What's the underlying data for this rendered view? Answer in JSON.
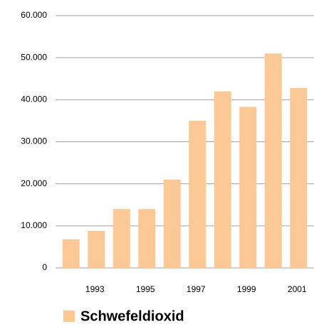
{
  "chart_data": {
    "type": "bar",
    "categories": [
      null,
      "1993",
      null,
      "1995",
      null,
      "1997",
      null,
      "1999",
      null,
      "2001"
    ],
    "series": [
      {
        "name": "Schwefeldioxid",
        "color": "#fcc996",
        "values": [
          6800,
          8800,
          14000,
          14000,
          21000,
          35000,
          42000,
          38300,
          51000,
          42800
        ]
      }
    ],
    "ylim": [
      0,
      60000
    ],
    "yticks": [
      0,
      {
        "value": 10000,
        "label": "10.000"
      },
      {
        "value": 20000,
        "label": "20.000"
      },
      {
        "value": 30000,
        "label": "30.000"
      },
      {
        "value": 40000,
        "label": "40.000"
      },
      {
        "value": 50000,
        "label": "50.000"
      },
      {
        "value": 60000,
        "label": "60.000"
      }
    ],
    "grid": true
  }
}
